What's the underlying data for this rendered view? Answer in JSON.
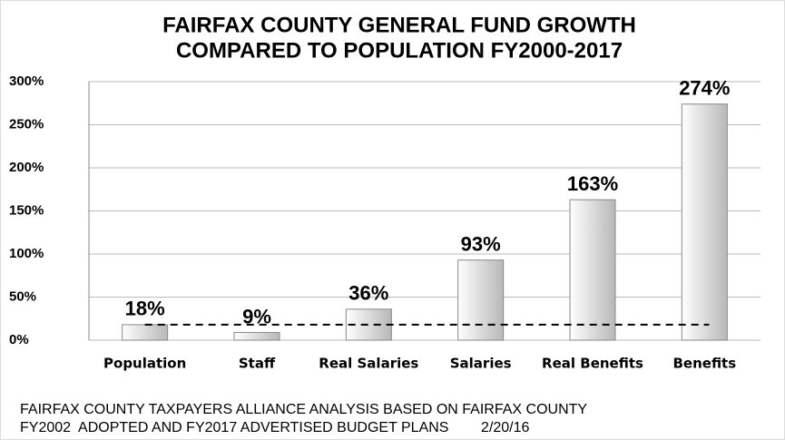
{
  "chart_data": {
    "type": "bar",
    "title": [
      "FAIRFAX COUNTY GENERAL FUND GROWTH",
      "COMPARED TO POPULATION FY2000-2017"
    ],
    "categories": [
      "Population",
      "Staff",
      "Real Salaries",
      "Salaries",
      "Real Benefits",
      "Benefits"
    ],
    "values": [
      18,
      9,
      36,
      93,
      163,
      274
    ],
    "value_labels": [
      "18%",
      "9%",
      "36%",
      "93%",
      "163%",
      "274%"
    ],
    "color": "#c8c8c8",
    "ylim": [
      0,
      300
    ],
    "yticks": [
      {
        "value": 0,
        "label": "0%"
      },
      {
        "value": 50,
        "label": "50%"
      },
      {
        "value": 100,
        "label": "100%"
      },
      {
        "value": 150,
        "label": "150%"
      },
      {
        "value": 200,
        "label": "200%"
      },
      {
        "value": 250,
        "label": "250%"
      },
      {
        "value": 300,
        "label": "300%"
      }
    ],
    "grid": true,
    "reference_line": 18,
    "annotations": [
      "FAIRFAX COUNTY TAXPAYERS ALLIANCE ANALYSIS BASED ON FAIRFAX COUNTY",
      "FY2002  ADOPTED AND FY2017 ADVERTISED BUDGET PLANS        2/20/16"
    ]
  }
}
